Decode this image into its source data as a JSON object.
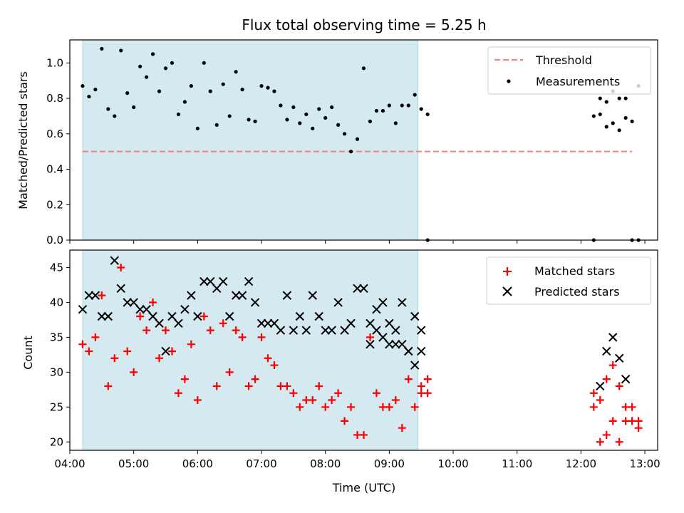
{
  "chart_data": [
    {
      "type": "scatter",
      "title": "Flux total observing time = 5.25 h",
      "xlabel": "",
      "ylabel": "Matched/Predicted stars",
      "ylim": [
        0,
        1.13
      ],
      "xlim": [
        "04:00",
        "13:12"
      ],
      "yticks": [
        "0.0",
        "0.2",
        "0.4",
        "0.6",
        "0.8",
        "1.0"
      ],
      "shaded_span": {
        "start": "04:12",
        "end": "09:27",
        "color": "#d4eaf0"
      },
      "threshold": {
        "name": "Threshold",
        "y": 0.5,
        "x_start": "04:12",
        "x_end": "12:48",
        "color": "#f08080"
      },
      "legend": {
        "position": "top-right",
        "entries": [
          "Threshold",
          "Measurements"
        ]
      },
      "series": [
        {
          "name": "Measurements",
          "color": "#000000",
          "marker": "dot",
          "x": [
            "04:12",
            "04:18",
            "04:24",
            "04:30",
            "04:36",
            "04:42",
            "04:48",
            "04:54",
            "05:00",
            "05:06",
            "05:12",
            "05:18",
            "05:24",
            "05:30",
            "05:36",
            "05:42",
            "05:48",
            "05:54",
            "06:00",
            "06:06",
            "06:12",
            "06:18",
            "06:24",
            "06:30",
            "06:36",
            "06:42",
            "06:48",
            "06:54",
            "07:00",
            "07:06",
            "07:12",
            "07:18",
            "07:24",
            "07:30",
            "07:36",
            "07:42",
            "07:48",
            "07:54",
            "08:00",
            "08:06",
            "08:12",
            "08:18",
            "08:24",
            "08:30",
            "08:36",
            "08:42",
            "08:48",
            "08:54",
            "09:00",
            "09:06",
            "09:12",
            "09:18",
            "09:24",
            "09:30",
            "09:36",
            "12:12",
            "12:18",
            "12:24",
            "12:30",
            "12:36",
            "12:42",
            "12:48",
            "12:54"
          ],
          "y": [
            0.87,
            0.81,
            0.85,
            1.08,
            0.74,
            0.7,
            1.07,
            0.83,
            0.75,
            0.98,
            0.92,
            1.05,
            0.84,
            0.97,
            1.0,
            0.71,
            0.78,
            0.87,
            0.63,
            1.0,
            0.84,
            0.65,
            0.88,
            0.7,
            0.95,
            0.85,
            0.68,
            0.67,
            0.87,
            0.86,
            0.84,
            0.76,
            0.68,
            0.75,
            0.66,
            0.71,
            0.63,
            0.74,
            0.69,
            0.75,
            0.65,
            0.6,
            0.5,
            0.57,
            0.97,
            0.67,
            0.73,
            0.73,
            0.76,
            0.66,
            0.76,
            0.76,
            0.82,
            0.74,
            0.71,
            0.7,
            0.8,
            0.78,
            0.84,
            0.8,
            0.69,
            0.67,
            0.87
          ]
        },
        {
          "name": "",
          "color": "#000000",
          "marker": "dot",
          "x": [
            "09:36",
            "12:12",
            "12:48",
            "12:54"
          ],
          "y": [
            0.0,
            0.0,
            0.0,
            0.0
          ]
        },
        {
          "name": "",
          "color": "#000000",
          "marker": "dot",
          "x": [
            "12:18",
            "12:24",
            "12:30",
            "12:36",
            "12:42"
          ],
          "y": [
            0.71,
            0.64,
            0.66,
            0.62,
            0.8
          ]
        }
      ]
    },
    {
      "type": "scatter",
      "title": "",
      "xlabel": "Time (UTC)",
      "ylabel": "Count",
      "ylim": [
        18.8,
        47.5
      ],
      "xlim": [
        "04:00",
        "13:12"
      ],
      "xticks": [
        "04:00",
        "05:00",
        "06:00",
        "07:00",
        "08:00",
        "09:00",
        "10:00",
        "11:00",
        "12:00",
        "13:00"
      ],
      "yticks": [
        "20",
        "25",
        "30",
        "35",
        "40",
        "45"
      ],
      "shaded_span": {
        "start": "04:12",
        "end": "09:27",
        "color": "#d4eaf0"
      },
      "legend": {
        "position": "top-right",
        "entries": [
          "Matched stars",
          "Predicted stars"
        ]
      },
      "series": [
        {
          "name": "Matched stars",
          "color": "#ff0000",
          "marker": "plus",
          "x": [
            "04:12",
            "04:18",
            "04:24",
            "04:30",
            "04:36",
            "04:42",
            "04:48",
            "04:54",
            "05:00",
            "05:06",
            "05:12",
            "05:18",
            "05:24",
            "05:30",
            "05:36",
            "05:42",
            "05:48",
            "05:54",
            "06:00",
            "06:06",
            "06:12",
            "06:18",
            "06:24",
            "06:30",
            "06:36",
            "06:42",
            "06:48",
            "06:54",
            "07:00",
            "07:06",
            "07:12",
            "07:18",
            "07:24",
            "07:30",
            "07:36",
            "07:42",
            "07:48",
            "07:54",
            "08:00",
            "08:06",
            "08:12",
            "08:18",
            "08:24",
            "08:30",
            "08:36",
            "08:42",
            "08:48",
            "08:54",
            "09:00",
            "09:06",
            "09:12",
            "09:18",
            "09:24",
            "09:30",
            "09:36",
            "12:12",
            "12:18",
            "12:24",
            "12:30",
            "12:36",
            "12:42",
            "12:48",
            "12:54"
          ],
          "y": [
            34,
            33,
            35,
            41,
            28,
            32,
            45,
            33,
            30,
            38,
            36,
            40,
            32,
            36,
            33,
            27,
            29,
            34,
            26,
            38,
            36,
            28,
            37,
            30,
            36,
            35,
            28,
            29,
            35,
            32,
            31,
            28,
            28,
            27,
            25,
            26,
            26,
            28,
            25,
            26,
            27,
            23,
            25,
            21,
            21,
            35,
            27,
            25,
            25,
            26,
            22,
            29,
            25,
            28,
            29,
            25,
            26,
            29,
            31,
            28,
            25,
            25,
            22
          ]
        },
        {
          "name": "",
          "color": "#ff0000",
          "marker": "plus",
          "x": [
            "09:30",
            "09:36",
            "12:12",
            "12:18",
            "12:24",
            "12:30",
            "12:36",
            "12:42",
            "12:48",
            "12:54"
          ],
          "y": [
            27,
            27,
            27,
            20,
            21,
            23,
            20,
            23,
            23,
            23
          ]
        },
        {
          "name": "Predicted stars",
          "color": "#000000",
          "marker": "x",
          "x": [
            "04:12",
            "04:18",
            "04:24",
            "04:30",
            "04:36",
            "04:42",
            "04:48",
            "04:54",
            "05:00",
            "05:06",
            "05:12",
            "05:18",
            "05:24",
            "05:30",
            "05:36",
            "05:42",
            "05:48",
            "05:54",
            "06:00",
            "06:06",
            "06:12",
            "06:18",
            "06:24",
            "06:30",
            "06:36",
            "06:42",
            "06:48",
            "06:54",
            "07:00",
            "07:06",
            "07:12",
            "07:18",
            "07:24",
            "07:30",
            "07:36",
            "07:42",
            "07:48",
            "07:54",
            "08:00",
            "08:06",
            "08:12",
            "08:18",
            "08:24",
            "08:30",
            "08:36",
            "08:42",
            "08:48",
            "08:54",
            "09:00",
            "09:06",
            "09:12",
            "09:18",
            "09:24",
            "09:30"
          ],
          "y": [
            39,
            41,
            41,
            38,
            38,
            46,
            42,
            40,
            40,
            39,
            39,
            38,
            37,
            33,
            38,
            37,
            39,
            41,
            38,
            43,
            43,
            42,
            43,
            38,
            41,
            41,
            43,
            40,
            37,
            37,
            37,
            36,
            41,
            36,
            38,
            36,
            41,
            38,
            36,
            36,
            40,
            36,
            37,
            42,
            42,
            37,
            36,
            40,
            34,
            34,
            34,
            33,
            38,
            33
          ]
        },
        {
          "name": "",
          "color": "#000000",
          "marker": "x",
          "x": [
            "08:42",
            "08:48",
            "08:54",
            "09:00",
            "09:06",
            "09:12",
            "09:18",
            "09:24",
            "09:30",
            "12:18",
            "12:24",
            "12:30",
            "12:36",
            "12:42"
          ],
          "y": [
            34,
            39,
            35,
            37,
            36,
            40,
            33,
            31,
            36,
            28,
            33,
            35,
            32,
            29
          ]
        }
      ]
    }
  ]
}
